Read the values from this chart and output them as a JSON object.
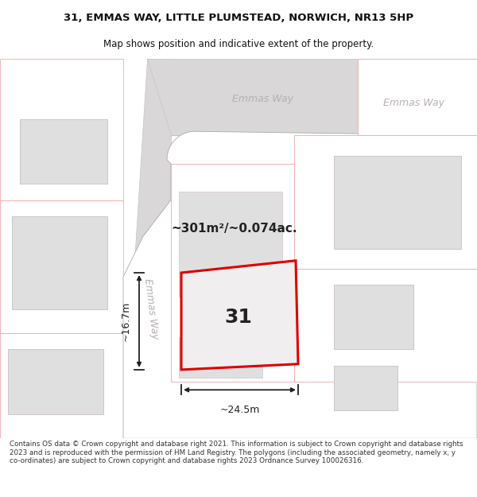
{
  "title_line1": "31, EMMAS WAY, LITTLE PLUMSTEAD, NORWICH, NR13 5HP",
  "title_line2": "Map shows position and indicative extent of the property.",
  "footer_text": "Contains OS data © Crown copyright and database right 2021. This information is subject to Crown copyright and database rights 2023 and is reproduced with the permission of HM Land Registry. The polygons (including the associated geometry, namely x, y co-ordinates) are subject to Crown copyright and database rights 2023 Ordnance Survey 100026316.",
  "area_text": "~301m²/~0.074ac.",
  "number_text": "31",
  "dim_width": "~24.5m",
  "dim_height": "~16.7m",
  "street_label_vert": "Emmas Way",
  "street_label_horiz1": "Emmas Way",
  "street_label_horiz2": "Emmas Way",
  "bg_color": "#ffffff",
  "map_bg": "#f8f7f7",
  "road_fill": "#d9d7d7",
  "parcel_bg": "#ffffff",
  "building_fill": "#e0dfdf",
  "building_edge": "#c8c0c0",
  "plot_fill": "#f0eeee",
  "plot_edge": "#dd0000",
  "boundary_color": "#f0a8a8",
  "road_outline": "#c8c4c4",
  "road_label_color": "#b8b0b0",
  "dim_line_color": "#222222",
  "text_color": "#222222",
  "title_color": "#111111"
}
